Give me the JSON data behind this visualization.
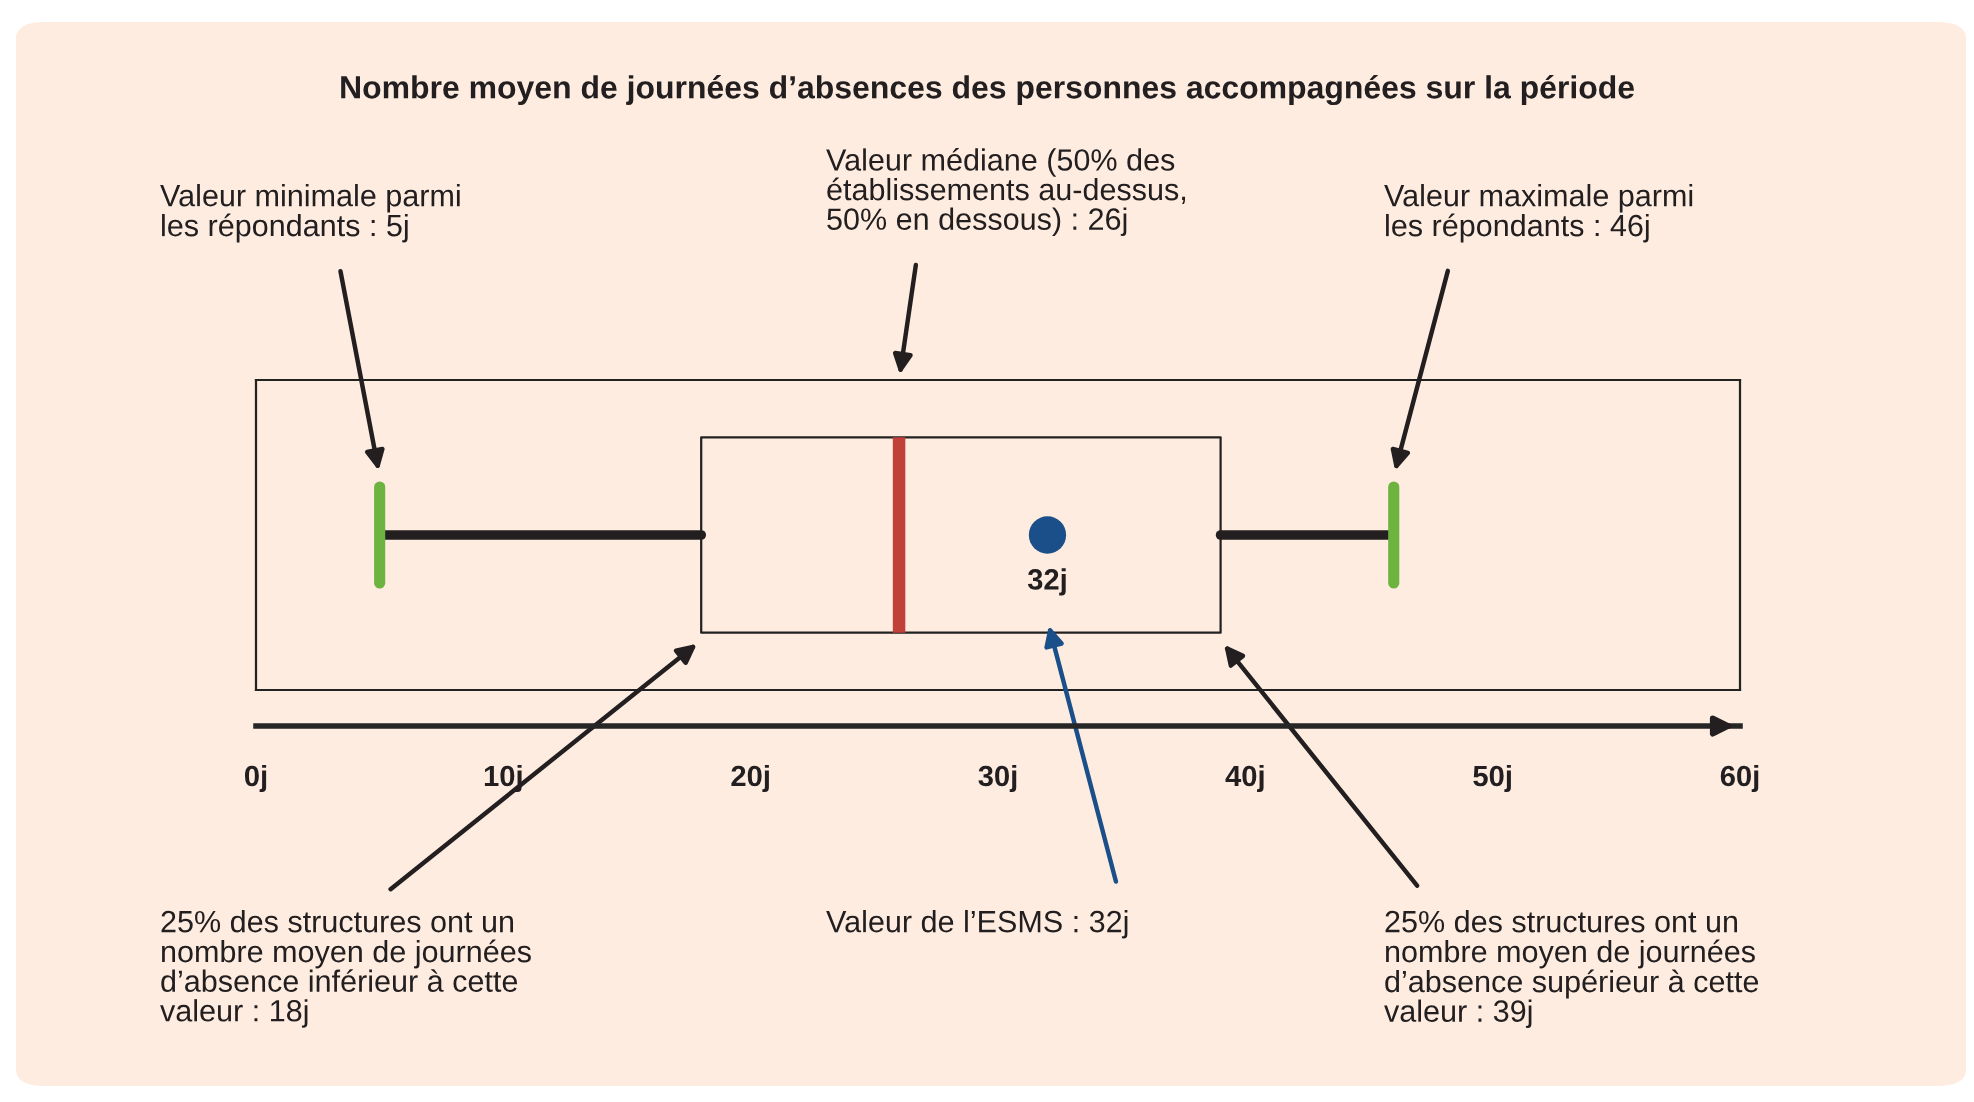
{
  "chart_data": {
    "type": "box",
    "orientation": "horizontal",
    "title": "Nombre moyen de journées d’absences des personnes accompagnées sur la période",
    "categories": [
      null
    ],
    "boxes": [
      {
        "low": 5,
        "q1": 18,
        "median": 26,
        "q3": 39,
        "high": 46
      }
    ],
    "series": [
      {
        "type": "scatter",
        "color": "#1a4f8a",
        "values": [
          32
        ],
        "value_labels": [
          "32j"
        ]
      }
    ],
    "xlim": [
      0,
      60
    ],
    "xticks": [
      {
        "value": 0,
        "label": "0j"
      },
      {
        "value": 10,
        "label": "10j"
      },
      {
        "value": 20,
        "label": "20j"
      },
      {
        "value": 30,
        "label": "30j"
      },
      {
        "value": 40,
        "label": "40j"
      },
      {
        "value": 50,
        "label": "50j"
      },
      {
        "value": 60,
        "label": "60j"
      }
    ],
    "tick_labels": "x",
    "annotations": [
      "Valeur minimale parmi\nles répondants : 5j",
      "Valeur médiane (50% des\nétablissements au-dessus,\n50% en dessous) : 26j",
      "Valeur maximale parmi\nles répondants : 46j",
      "25% des structures ont un\nnombre moyen de journées\nd’absence inférieur à cette\nvaleur : 18j",
      "Valeur de l’ESMS : 32j",
      "25% des structures ont un\nnombre moyen de journées\nd’absence supérieur à cette\nvaleur : 39j"
    ]
  }
}
